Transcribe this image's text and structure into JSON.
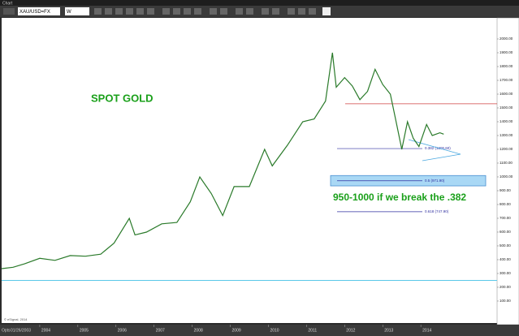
{
  "toolbar": {
    "tab": "Chart",
    "symbol": "XAU/USD=FX",
    "interval": "W",
    "footer_label": "Opts",
    "footer_date": "01/26/2003",
    "credit": "© eSignal, 2014"
  },
  "chart_data": {
    "type": "line",
    "color": "#2a7a2a",
    "x": [
      2003.0,
      2003.3,
      2003.6,
      2004.0,
      2004.4,
      2004.8,
      2005.2,
      2005.6,
      2005.95,
      2006.35,
      2006.5,
      2006.8,
      2007.2,
      2007.6,
      2007.95,
      2008.2,
      2008.5,
      2008.8,
      2009.1,
      2009.5,
      2009.9,
      2010.1,
      2010.5,
      2010.9,
      2011.2,
      2011.5,
      2011.68,
      2011.78,
      2012.0,
      2012.2,
      2012.4,
      2012.6,
      2012.8,
      2013.0,
      2013.2,
      2013.35,
      2013.5,
      2013.65,
      2013.8,
      2013.95,
      2014.15,
      2014.3,
      2014.5,
      2014.6
    ],
    "values": [
      335,
      345,
      370,
      410,
      395,
      430,
      425,
      440,
      520,
      700,
      580,
      600,
      660,
      670,
      820,
      1000,
      880,
      720,
      930,
      930,
      1200,
      1080,
      1230,
      1400,
      1420,
      1550,
      1900,
      1650,
      1720,
      1660,
      1560,
      1620,
      1780,
      1670,
      1600,
      1400,
      1200,
      1400,
      1280,
      1220,
      1380,
      1300,
      1320,
      1310
    ],
    "xlim": [
      2003.0,
      2016.0
    ],
    "xticks": [
      2004,
      2005,
      2006,
      2007,
      2008,
      2009,
      2010,
      2011,
      2012,
      2013,
      2014
    ],
    "ylim": [
      -59,
      2153
    ],
    "yticks": [
      {
        "value": 100,
        "label": "100.00"
      },
      {
        "value": 200,
        "label": "200.00"
      },
      {
        "value": 300,
        "label": "300.00"
      },
      {
        "value": 400,
        "label": "400.00"
      },
      {
        "value": 500,
        "label": "500.00"
      },
      {
        "value": 600,
        "label": "600.00"
      },
      {
        "value": 700,
        "label": "700.00"
      },
      {
        "value": 800,
        "label": "800.00"
      },
      {
        "value": 900,
        "label": "900.00"
      },
      {
        "value": 1000,
        "label": "1000.00"
      },
      {
        "value": 1100,
        "label": "1100.00"
      },
      {
        "value": 1200,
        "label": "1200.00"
      },
      {
        "value": 1300,
        "label": "1300.00"
      },
      {
        "value": 1400,
        "label": "1400.00"
      },
      {
        "value": 1500,
        "label": "1500.00"
      },
      {
        "value": 1600,
        "label": "1600.00"
      },
      {
        "value": 1700,
        "label": "1700.00"
      },
      {
        "value": 1800,
        "label": "1800.00"
      },
      {
        "value": 1900,
        "label": "1900.00"
      },
      {
        "value": 2000,
        "label": "2000.00"
      }
    ],
    "title": "SPOT GOLD",
    "annotation": "950-1000 if we break the .382",
    "fib_levels": [
      {
        "value": 1205.6,
        "label": "0.382 (1205.60)"
      },
      {
        "value": 971.9,
        "label": "0.5 (971.90)"
      },
      {
        "value": 747.9,
        "label": "0.618 (747.90)"
      }
    ],
    "zone": [
      935,
      1010
    ],
    "resistance": 1530,
    "support": 250
  }
}
